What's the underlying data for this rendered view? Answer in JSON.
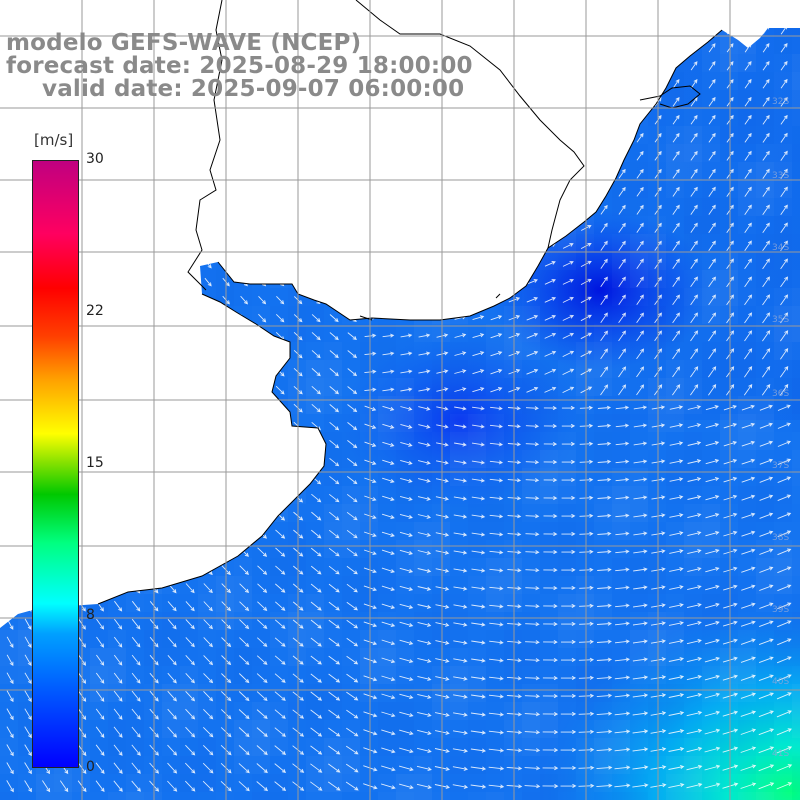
{
  "title": {
    "line1": "modelo GEFS-WAVE (NCEP)",
    "line2": "forecast date: 2025-08-29 18:00:00",
    "line3": "valid date: 2025-09-07 06:00:00"
  },
  "colorbar": {
    "units": "[m/s]",
    "ticks": [
      "30",
      "22",
      "15",
      "8",
      "0"
    ],
    "min": 0,
    "max": 30,
    "colors": [
      "#0000ff",
      "#00a0ff",
      "#00ffff",
      "#00c800",
      "#ffff00",
      "#ff0000",
      "#c00080"
    ]
  },
  "map": {
    "ocean_base_color": "#1473f0",
    "land_color": "#ffffff",
    "grid_color": "#999999",
    "coastline_color": "#000000",
    "arrow_color": "#ffffff"
  }
}
